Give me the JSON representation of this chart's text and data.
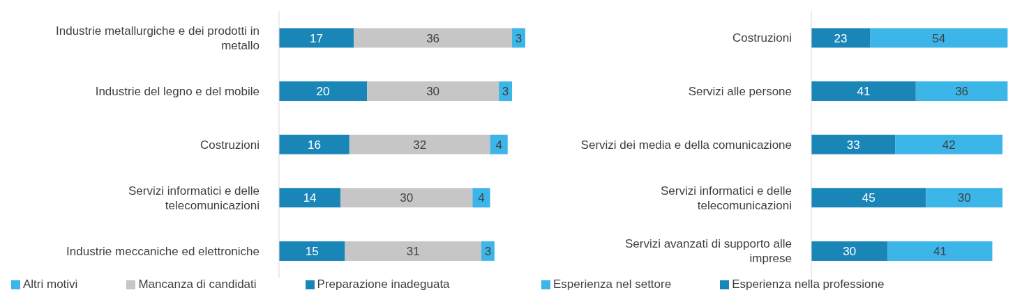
{
  "chart_data": [
    {
      "type": "bar",
      "orientation": "horizontal",
      "stacked": true,
      "data_labels": true,
      "grid": false,
      "legend": "bottom",
      "categories": [
        "Industrie metallurgiche e dei prodotti in metallo",
        "Industrie del legno e del mobile",
        "Costruzioni",
        "Servizi informatici e delle telecomunicazioni",
        "Industrie meccaniche ed elettroniche"
      ],
      "series": [
        {
          "name": "Preparazione inadeguata",
          "color": "#1a86b8",
          "values": [
            17,
            20,
            16,
            14,
            15
          ]
        },
        {
          "name": "Mancanza di candidati",
          "color": "#c6c6c6",
          "values": [
            36,
            30,
            32,
            30,
            31
          ]
        },
        {
          "name": "Altri motivi",
          "color": "#3cb5e8",
          "values": [
            3,
            3,
            4,
            4,
            3
          ]
        }
      ]
    },
    {
      "type": "bar",
      "orientation": "horizontal",
      "stacked": true,
      "data_labels": true,
      "grid": false,
      "legend": "bottom",
      "categories": [
        "Costruzioni",
        "Servizi alle persone",
        "Servizi dei media e della comunicazione",
        "Servizi informatici e delle telecomunicazioni",
        "Servizi avanzati di supporto alle imprese"
      ],
      "series": [
        {
          "name": "Esperienza nella professione",
          "color": "#1a86b8",
          "values": [
            23,
            41,
            33,
            45,
            30
          ]
        },
        {
          "name": "Esperienza nel settore",
          "color": "#3cb5e8",
          "values": [
            54,
            36,
            42,
            30,
            41
          ]
        }
      ]
    }
  ]
}
